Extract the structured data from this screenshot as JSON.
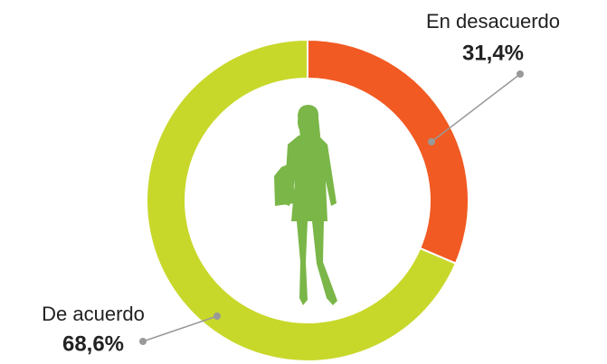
{
  "chart_data": {
    "type": "donut",
    "categories": [
      "En desacuerdo",
      "De acuerdo"
    ],
    "values": [
      31.4,
      68.6
    ],
    "value_labels": [
      "31,4%",
      "68,6%"
    ],
    "colors": [
      "#f15a22",
      "#c8d82b"
    ]
  }
}
